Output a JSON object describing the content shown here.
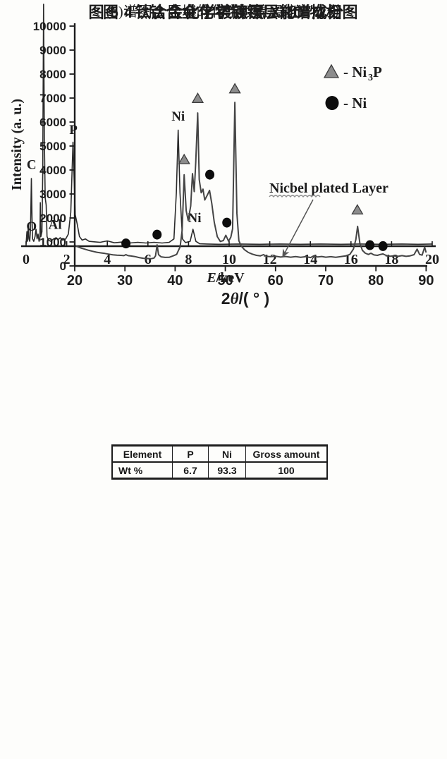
{
  "page": {
    "background": "#fdfdfb",
    "ink": "#1c1c1c"
  },
  "captions": {
    "fig4_sub": "(b)谱图 2 区域的化学镀镍层能谱成分",
    "fig4_main": "图 4　钛合金化学镀镍层能谱成分",
    "fig5_main": "图 5　钛合金化学镀镍层 XRD 物相图"
  },
  "chart_data": [
    {
      "id": "eds-spectrum",
      "type": "line",
      "title": "",
      "xlabel": "E/keV",
      "xlabel_parts": {
        "italic": "E",
        "rest": "/keV"
      },
      "ylabel": "",
      "xlim": [
        0,
        20
      ],
      "x_ticks": [
        0,
        2,
        4,
        6,
        8,
        10,
        12,
        14,
        16,
        18,
        20
      ],
      "y_axis_note": "no y axis drawn; intensities given as percent of plot height",
      "peak_labels": [
        {
          "text": "C",
          "E": 0.27,
          "pct": 31
        },
        {
          "text": "O",
          "E": 0.27,
          "pct": 5.5
        },
        {
          "text": "Al",
          "E": 1.43,
          "pct": 6.2
        },
        {
          "text": "P",
          "E": 2.33,
          "pct": 45.5
        },
        {
          "text": "Ni",
          "E": 7.49,
          "pct": 51
        },
        {
          "text": "Ni",
          "E": 8.3,
          "pct": 9
        }
      ],
      "curve_E_keV_vs_pct": [
        [
          0.0,
          1
        ],
        [
          0.04,
          6
        ],
        [
          0.07,
          2
        ],
        [
          0.11,
          9
        ],
        [
          0.14,
          3
        ],
        [
          0.18,
          2
        ],
        [
          0.22,
          7
        ],
        [
          0.26,
          28
        ],
        [
          0.29,
          12
        ],
        [
          0.32,
          3
        ],
        [
          0.38,
          2
        ],
        [
          0.44,
          4
        ],
        [
          0.49,
          7
        ],
        [
          0.54,
          3
        ],
        [
          0.59,
          5
        ],
        [
          0.64,
          2
        ],
        [
          0.68,
          3
        ],
        [
          0.7,
          18
        ],
        [
          0.73,
          4
        ],
        [
          0.78,
          6
        ],
        [
          0.82,
          30
        ],
        [
          0.86,
          100
        ],
        [
          0.9,
          45
        ],
        [
          0.94,
          20
        ],
        [
          0.99,
          17
        ],
        [
          1.03,
          4
        ],
        [
          1.1,
          2.5
        ],
        [
          1.22,
          2
        ],
        [
          1.35,
          3
        ],
        [
          1.48,
          3.5
        ],
        [
          1.58,
          2.7
        ],
        [
          1.68,
          3.5
        ],
        [
          1.8,
          2.5
        ],
        [
          1.95,
          3
        ],
        [
          2.08,
          5
        ],
        [
          2.2,
          14
        ],
        [
          2.31,
          43
        ],
        [
          2.42,
          13
        ],
        [
          2.52,
          9
        ],
        [
          2.63,
          4
        ],
        [
          2.76,
          2.5
        ],
        [
          2.92,
          3
        ],
        [
          3.1,
          2
        ],
        [
          3.35,
          1.8
        ],
        [
          3.65,
          1.6
        ],
        [
          4.0,
          2.2
        ],
        [
          4.35,
          1.4
        ],
        [
          4.7,
          1.7
        ],
        [
          5.1,
          1.3
        ],
        [
          5.5,
          1.6
        ],
        [
          5.9,
          1.3
        ],
        [
          6.3,
          1.6
        ],
        [
          6.7,
          1.3
        ],
        [
          7.05,
          1.6
        ],
        [
          7.28,
          3
        ],
        [
          7.4,
          22
        ],
        [
          7.49,
          48
        ],
        [
          7.58,
          22
        ],
        [
          7.7,
          3
        ],
        [
          7.85,
          1.5
        ],
        [
          8.08,
          2
        ],
        [
          8.22,
          7
        ],
        [
          8.36,
          2
        ],
        [
          8.55,
          1
        ],
        [
          8.9,
          0.9
        ],
        [
          9.5,
          0.8
        ],
        [
          10.5,
          0.9
        ],
        [
          11.5,
          0.8
        ],
        [
          12.5,
          0.9
        ],
        [
          13.5,
          0.8
        ],
        [
          14.5,
          0.9
        ],
        [
          15.5,
          0.8
        ],
        [
          16.5,
          0.9
        ],
        [
          17.5,
          0.8
        ],
        [
          18.5,
          0.9
        ],
        [
          19.3,
          0.8
        ],
        [
          20.0,
          0.9
        ]
      ]
    },
    {
      "id": "xrd-pattern",
      "type": "line",
      "title": "",
      "xlabel": "2θ/(°)",
      "xlabel_parts": {
        "pre": "2",
        "theta": "θ",
        "post": "/( ° )"
      },
      "ylabel": "Intensity (a. u.)",
      "xlim": [
        20,
        90
      ],
      "ylim": [
        0,
        10000
      ],
      "x_ticks": [
        20,
        30,
        40,
        50,
        60,
        70,
        80,
        90
      ],
      "y_ticks": [
        0,
        1000,
        2000,
        3000,
        4000,
        5000,
        6000,
        7000,
        8000,
        9000,
        10000
      ],
      "legend": [
        {
          "marker": "triangle",
          "color": "#8c8c8c",
          "label_base": "- Ni",
          "label_sub": "3",
          "label_tail": "P"
        },
        {
          "marker": "circle",
          "color": "#0d0d0d",
          "label_base": "- Ni",
          "label_sub": "",
          "label_tail": ""
        }
      ],
      "annotation": {
        "text": "Nicbel plated Layer",
        "arrow_points_to_2theta": 61
      },
      "inset_table": {
        "headers": [
          "Element",
          "P",
          "Ni",
          "Gross amount"
        ],
        "rows": [
          [
            "Wt %",
            "6.7",
            "93.3",
            "100"
          ]
        ]
      },
      "markers": {
        "triangle_Ni3P": [
          [
            41.8,
            4250
          ],
          [
            44.5,
            6800
          ],
          [
            51.9,
            7200
          ],
          [
            76.3,
            2150
          ]
        ],
        "circle_Ni": [
          [
            30.2,
            730
          ],
          [
            36.4,
            1100
          ],
          [
            46.9,
            3600
          ],
          [
            50.3,
            1600
          ],
          [
            78.8,
            660
          ],
          [
            81.4,
            620
          ]
        ]
      },
      "curve_2theta_vs_intensity": [
        [
          20,
          860
        ],
        [
          20.6,
          800
        ],
        [
          21.2,
          750
        ],
        [
          22,
          700
        ],
        [
          22.8,
          650
        ],
        [
          23.6,
          610
        ],
        [
          24.4,
          570
        ],
        [
          25.2,
          545
        ],
        [
          26,
          520
        ],
        [
          26.8,
          490
        ],
        [
          27.6,
          465
        ],
        [
          28.4,
          450
        ],
        [
          29.2,
          440
        ],
        [
          29.8,
          430
        ],
        [
          30.2,
          470
        ],
        [
          30.6,
          430
        ],
        [
          31.2,
          415
        ],
        [
          32,
          390
        ],
        [
          32.8,
          350
        ],
        [
          33.6,
          320
        ],
        [
          34.4,
          310
        ],
        [
          35.2,
          300
        ],
        [
          35.8,
          330
        ],
        [
          36.1,
          420
        ],
        [
          36.4,
          880
        ],
        [
          36.7,
          470
        ],
        [
          37.2,
          380
        ],
        [
          38,
          355
        ],
        [
          38.8,
          360
        ],
        [
          39.6,
          420
        ],
        [
          40.3,
          480
        ],
        [
          41,
          800
        ],
        [
          41.4,
          1500
        ],
        [
          41.8,
          3800
        ],
        [
          42.2,
          2300
        ],
        [
          42.6,
          1900
        ],
        [
          43.1,
          2500
        ],
        [
          43.45,
          3850
        ],
        [
          43.8,
          3100
        ],
        [
          44.1,
          4300
        ],
        [
          44.5,
          6380
        ],
        [
          44.8,
          3600
        ],
        [
          45.2,
          3050
        ],
        [
          45.55,
          3200
        ],
        [
          45.9,
          2750
        ],
        [
          46.4,
          2950
        ],
        [
          46.85,
          3150
        ],
        [
          47.3,
          2600
        ],
        [
          47.8,
          1820
        ],
        [
          48.4,
          1220
        ],
        [
          49,
          1020
        ],
        [
          49.6,
          1060
        ],
        [
          50.1,
          1280
        ],
        [
          50.65,
          1030
        ],
        [
          51.1,
          1200
        ],
        [
          51.45,
          1550
        ],
        [
          51.9,
          6820
        ],
        [
          52.3,
          2200
        ],
        [
          52.7,
          1050
        ],
        [
          53.2,
          820
        ],
        [
          53.8,
          680
        ],
        [
          54.6,
          560
        ],
        [
          55.4,
          490
        ],
        [
          56.2,
          440
        ],
        [
          57,
          420
        ],
        [
          57.6,
          470
        ],
        [
          58.2,
          400
        ],
        [
          59,
          385
        ],
        [
          60,
          405
        ],
        [
          61,
          370
        ],
        [
          62,
          395
        ],
        [
          63,
          365
        ],
        [
          64,
          390
        ],
        [
          65,
          360
        ],
        [
          66,
          385
        ],
        [
          67,
          350
        ],
        [
          67.6,
          420
        ],
        [
          68.4,
          375
        ],
        [
          69.2,
          395
        ],
        [
          70,
          365
        ],
        [
          71,
          385
        ],
        [
          72,
          360
        ],
        [
          73,
          390
        ],
        [
          74,
          420
        ],
        [
          74.8,
          480
        ],
        [
          75.5,
          700
        ],
        [
          76,
          1100
        ],
        [
          76.35,
          1650
        ],
        [
          76.8,
          950
        ],
        [
          77.3,
          650
        ],
        [
          77.9,
          530
        ],
        [
          78.5,
          480
        ],
        [
          79,
          530
        ],
        [
          79.6,
          460
        ],
        [
          80.3,
          440
        ],
        [
          80.9,
          480
        ],
        [
          81.4,
          500
        ],
        [
          82,
          440
        ],
        [
          82.8,
          405
        ],
        [
          83.6,
          420
        ],
        [
          84.4,
          400
        ],
        [
          85.2,
          430
        ],
        [
          86,
          400
        ],
        [
          86.8,
          420
        ],
        [
          87.6,
          470
        ],
        [
          88.2,
          700
        ],
        [
          88.7,
          480
        ],
        [
          89.2,
          450
        ],
        [
          89.7,
          780
        ],
        [
          90,
          560
        ]
      ]
    }
  ]
}
